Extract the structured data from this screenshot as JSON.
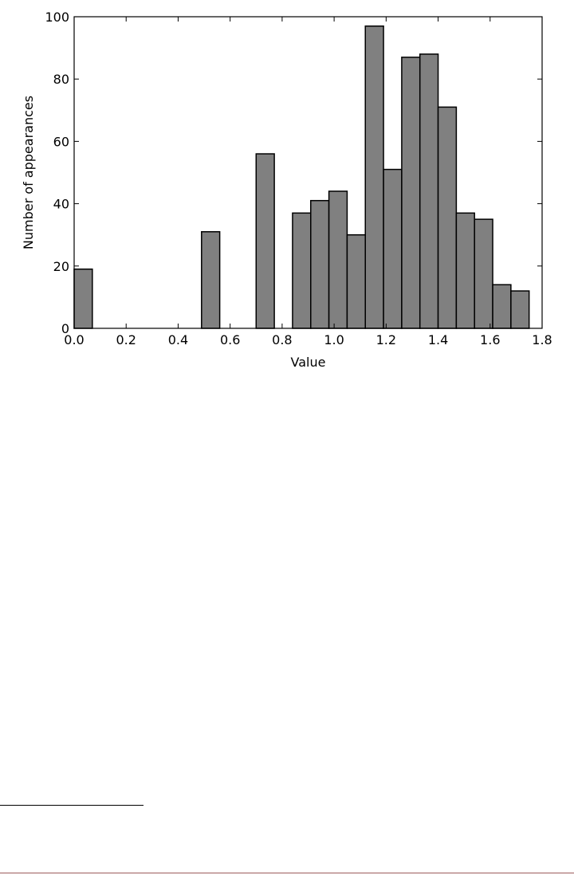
{
  "chart_data": {
    "type": "bar",
    "title": "",
    "xlabel": "Value",
    "ylabel": "Number of appearances",
    "xlim": [
      0.0,
      1.8
    ],
    "ylim": [
      0,
      100
    ],
    "grid": false,
    "bar_color": "#808080",
    "edge_color": "#000000",
    "xticks": [
      "0.0",
      "0.2",
      "0.4",
      "0.6",
      "0.8",
      "1.0",
      "1.2",
      "1.4",
      "1.6",
      "1.8"
    ],
    "yticks": [
      "0",
      "20",
      "40",
      "60",
      "80",
      "100"
    ],
    "bins": [
      {
        "x0": 0.0,
        "x1": 0.07,
        "value": 19
      },
      {
        "x0": 0.49,
        "x1": 0.56,
        "value": 31
      },
      {
        "x0": 0.7,
        "x1": 0.77,
        "value": 56
      },
      {
        "x0": 0.84,
        "x1": 0.91,
        "value": 37
      },
      {
        "x0": 0.91,
        "x1": 0.98,
        "value": 41
      },
      {
        "x0": 0.98,
        "x1": 1.05,
        "value": 44
      },
      {
        "x0": 1.05,
        "x1": 1.12,
        "value": 30
      },
      {
        "x0": 1.12,
        "x1": 1.19,
        "value": 97
      },
      {
        "x0": 1.19,
        "x1": 1.26,
        "value": 51
      },
      {
        "x0": 1.26,
        "x1": 1.33,
        "value": 87
      },
      {
        "x0": 1.33,
        "x1": 1.4,
        "value": 88
      },
      {
        "x0": 1.4,
        "x1": 1.47,
        "value": 71
      },
      {
        "x0": 1.47,
        "x1": 1.54,
        "value": 37
      },
      {
        "x0": 1.54,
        "x1": 1.61,
        "value": 35
      },
      {
        "x0": 1.61,
        "x1": 1.68,
        "value": 14
      },
      {
        "x0": 1.68,
        "x1": 1.75,
        "value": 12
      }
    ]
  }
}
